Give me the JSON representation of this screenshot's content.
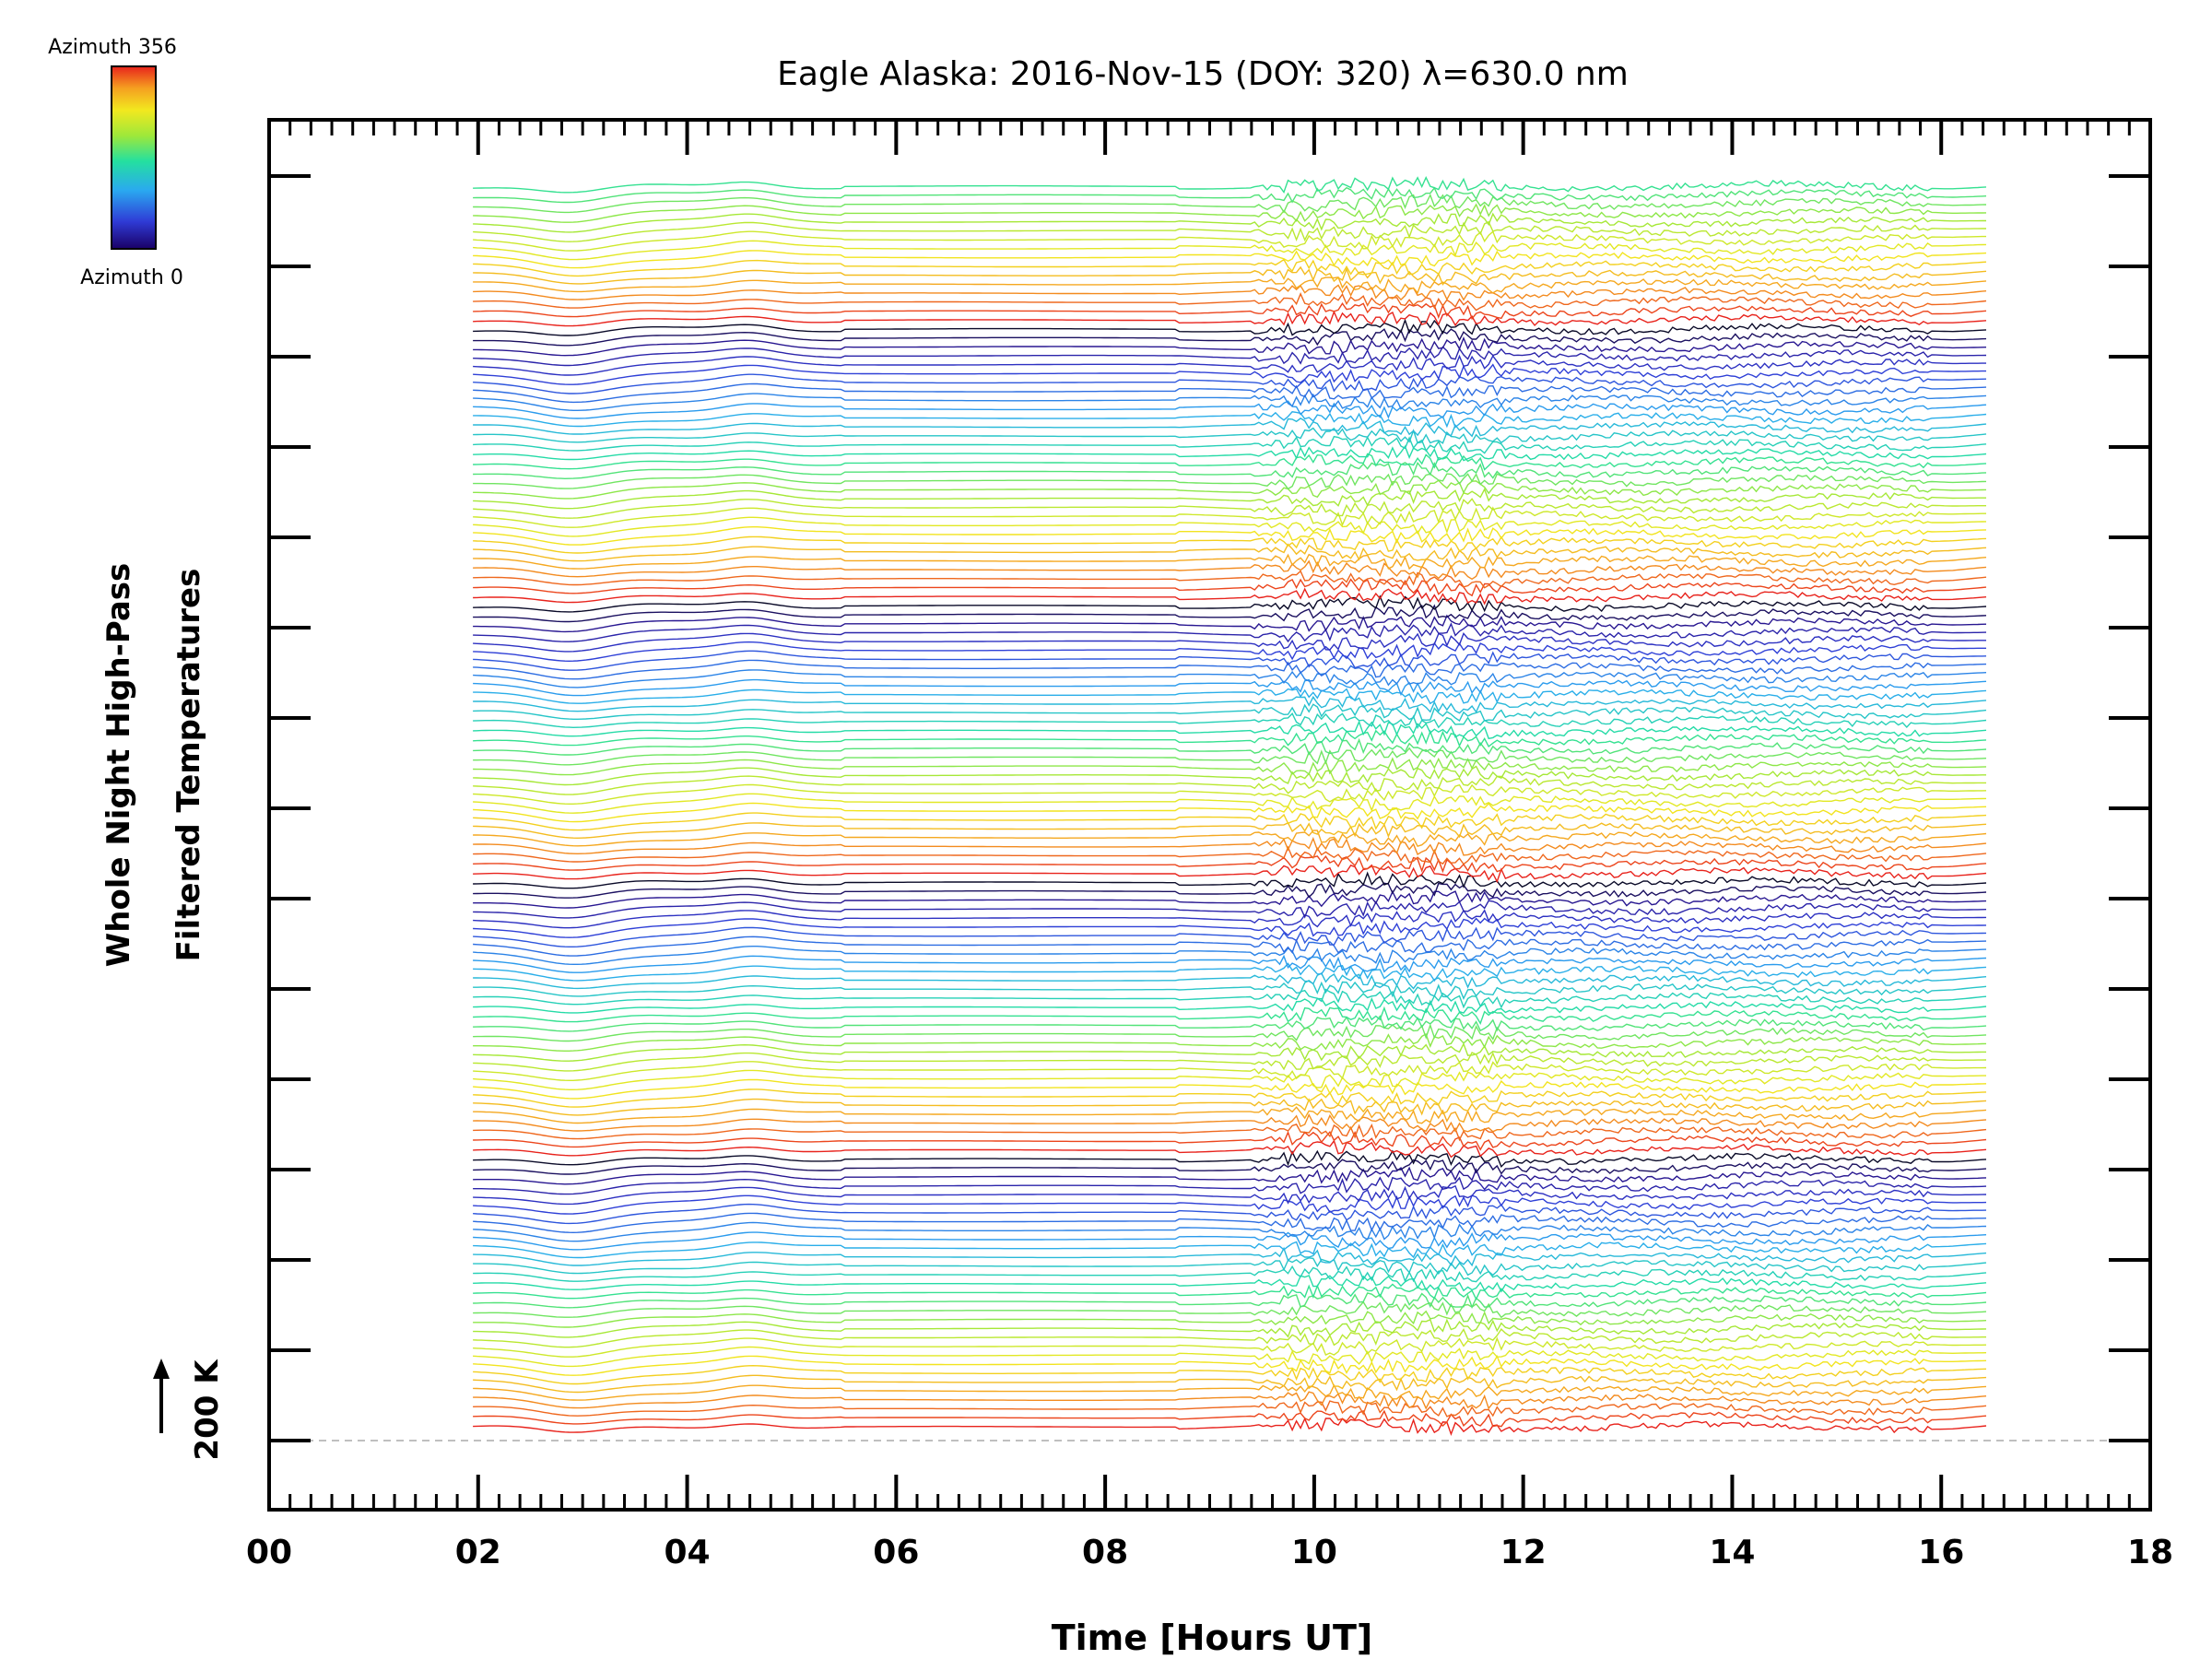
{
  "chart_data": {
    "type": "line",
    "title": "Eagle Alaska: 2016-Nov-15 (DOY: 320) λ=630.0 nm",
    "xlabel": "Time [Hours UT]",
    "ylabel_lines": [
      "Whole Night High-Pass",
      "Filtered Temperatures"
    ],
    "scale_label": "200 K",
    "colorbar": {
      "top_label": "Azimuth 356",
      "bottom_label": "Azimuth 0",
      "colormap": "rainbow"
    },
    "xlim": [
      0,
      18
    ],
    "x_tick_labels": [
      "00",
      "02",
      "04",
      "06",
      "08",
      "10",
      "12",
      "14",
      "16",
      "18"
    ],
    "x_tick_values": [
      0,
      2,
      4,
      6,
      8,
      10,
      12,
      14,
      16,
      18
    ],
    "data_time_range": [
      1.95,
      16.45
    ],
    "data_gap": [
      5.5,
      8.7
    ],
    "n_traces": 140,
    "azimuth_range": [
      0,
      356
    ],
    "repeat_period_traces": 31,
    "grid": false,
    "baseline_dashed": true
  },
  "colors": {
    "axis": "#000000",
    "background": "#ffffff",
    "baseline": "#aaaaaa"
  }
}
